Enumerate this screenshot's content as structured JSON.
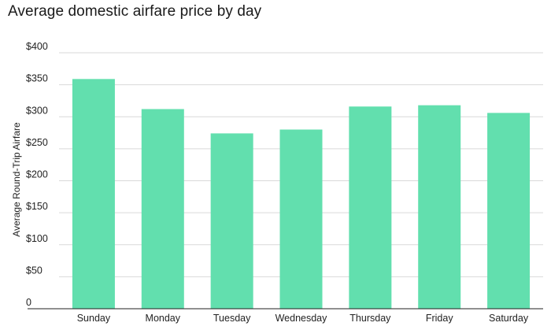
{
  "chart_data": {
    "type": "bar",
    "title": "Average domestic airfare price by day",
    "xlabel": "",
    "ylabel": "Average Round-Trip Airfare",
    "categories": [
      "Sunday",
      "Monday",
      "Tuesday",
      "Wednesday",
      "Thursday",
      "Friday",
      "Saturday"
    ],
    "values": [
      359,
      312,
      274,
      280,
      316,
      318,
      306
    ],
    "ylim": [
      0,
      400
    ],
    "yticks": [
      0,
      50,
      100,
      150,
      200,
      250,
      300,
      350,
      400
    ],
    "ytick_labels": [
      "0",
      "$50",
      "$100",
      "$150",
      "$200",
      "$250",
      "$300",
      "$350",
      "$400"
    ],
    "grid": true,
    "legend": "none",
    "colors": {
      "bar": "#62dfae",
      "grid": "#d9d9d9",
      "axis": "#222222"
    }
  }
}
